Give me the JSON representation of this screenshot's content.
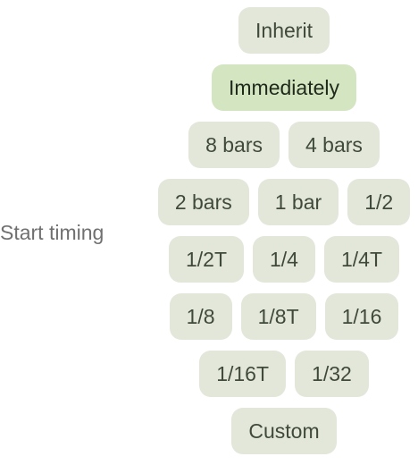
{
  "label": "Start timing",
  "selected": "Immediately",
  "rows": [
    [
      "Inherit"
    ],
    [
      "Immediately"
    ],
    [
      "8 bars",
      "4 bars"
    ],
    [
      "2 bars",
      "1 bar",
      "1/2"
    ],
    [
      "1/2T",
      "1/4",
      "1/4T"
    ],
    [
      "1/8",
      "1/8T",
      "1/16"
    ],
    [
      "1/16T",
      "1/32"
    ],
    [
      "Custom"
    ]
  ],
  "colors": {
    "chip_bg": "#e3e7da",
    "chip_selected_bg": "#d4e5c1",
    "chip_text": "#3f4a3b",
    "label_text": "#707070"
  }
}
